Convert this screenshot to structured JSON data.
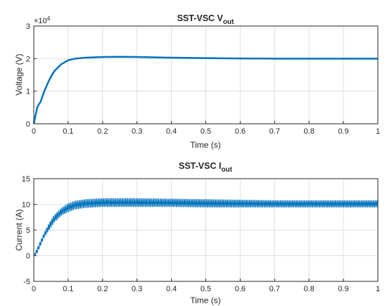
{
  "chart_data": [
    {
      "type": "line",
      "title_main": "SST-VSC V",
      "title_sub": "out",
      "xlabel": "Time (s)",
      "ylabel": "Voltage (V)",
      "y_exponent_label": "×10",
      "y_exponent_power": "4",
      "xlim": [
        0,
        1
      ],
      "ylim": [
        0,
        30000
      ],
      "x_ticks": [
        "0",
        "0.1",
        "0.2",
        "0.3",
        "0.4",
        "0.5",
        "0.6",
        "0.7",
        "0.8",
        "0.9",
        "1"
      ],
      "y_ticks": [
        "0",
        "1",
        "2",
        "3"
      ],
      "grid": true,
      "color": "#0072bd",
      "series": [
        {
          "x": [
            0,
            0.005,
            0.01,
            0.015,
            0.02,
            0.03,
            0.04,
            0.05,
            0.06,
            0.08,
            0.1,
            0.12,
            0.15,
            0.2,
            0.25,
            0.3,
            0.35,
            0.4,
            0.5,
            0.6,
            0.7,
            0.8,
            0.9,
            1.0
          ],
          "y": [
            0,
            2500,
            5000,
            6000,
            6800,
            9800,
            12300,
            14500,
            16200,
            18300,
            19500,
            20000,
            20300,
            20500,
            20550,
            20500,
            20400,
            20300,
            20150,
            20050,
            20000,
            20000,
            20000,
            20000
          ]
        }
      ]
    },
    {
      "type": "line",
      "title_main": "SST-VSC I",
      "title_sub": "out",
      "xlabel": "Time (s)",
      "ylabel": "Current (A)",
      "xlim": [
        0,
        1
      ],
      "ylim": [
        -5,
        15
      ],
      "x_ticks": [
        "0",
        "0.1",
        "0.2",
        "0.3",
        "0.4",
        "0.5",
        "0.6",
        "0.7",
        "0.8",
        "0.9",
        "1"
      ],
      "y_ticks": [
        "-5",
        "0",
        "5",
        "10",
        "15"
      ],
      "grid": true,
      "color": "#0072bd",
      "series": [
        {
          "oscillating": true,
          "ripple_period": 0.01,
          "x": [
            0,
            0.01,
            0.02,
            0.03,
            0.04,
            0.05,
            0.06,
            0.08,
            0.1,
            0.12,
            0.15,
            0.2,
            0.3,
            0.4,
            0.5,
            0.6,
            0.7,
            0.8,
            0.9,
            1.0
          ],
          "y_min": [
            0,
            0.5,
            2.0,
            3.5,
            4.5,
            5.5,
            6.5,
            7.8,
            8.5,
            9.0,
            9.3,
            9.5,
            9.5,
            9.5,
            9.4,
            9.4,
            9.4,
            9.4,
            9.4,
            9.4
          ],
          "y_max": [
            0,
            1.5,
            3.0,
            4.5,
            5.8,
            7.0,
            8.0,
            9.3,
            10.2,
            10.7,
            11.0,
            11.2,
            11.2,
            11.1,
            11.0,
            10.9,
            10.8,
            10.8,
            10.8,
            10.8
          ]
        }
      ]
    }
  ]
}
